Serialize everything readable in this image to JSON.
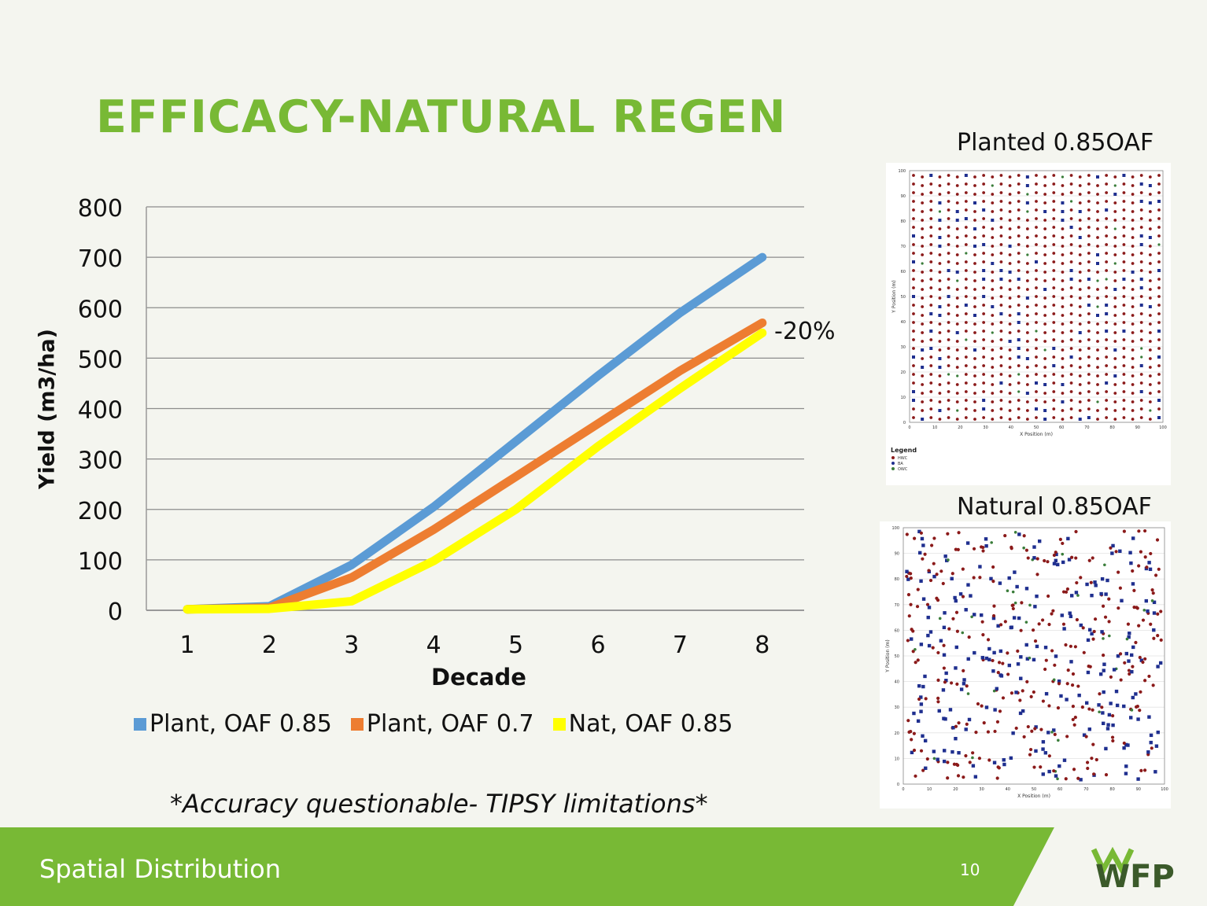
{
  "slide": {
    "title": "EFFICACY-NATURAL REGEN",
    "note": "*Accuracy questionable- TIPSY limitations*",
    "footer_text": "Spatial Distribution",
    "page_number": "10",
    "logo_text": "WFP"
  },
  "chart_data": {
    "type": "line",
    "xlabel": "Decade",
    "ylabel": "Yield (m3/ha)",
    "categories": [
      "1",
      "2",
      "3",
      "4",
      "5",
      "6",
      "7",
      "8"
    ],
    "ylim": [
      0,
      800
    ],
    "yticks": [
      "0",
      "100",
      "200",
      "300",
      "400",
      "500",
      "600",
      "700",
      "800"
    ],
    "grid": true,
    "legend_position": "bottom",
    "annotation": "-20%",
    "series": [
      {
        "name": "Plant, OAF 0.85",
        "color": "#5b9bd5",
        "values": [
          2,
          8,
          90,
          205,
          335,
          465,
          590,
          700
        ]
      },
      {
        "name": "Plant, OAF 0.7",
        "color": "#ed7d31",
        "values": [
          2,
          5,
          65,
          160,
          265,
          370,
          475,
          570
        ]
      },
      {
        "name": "Nat, OAF 0.85",
        "color": "#ffff00",
        "values": [
          2,
          3,
          18,
          98,
          200,
          325,
          440,
          550
        ]
      }
    ]
  },
  "plots": {
    "planted_label": "Planted 0.85OAF",
    "natural_label": "Natural 0.85OAF",
    "x_axis_title": "X Position (m)",
    "y_axis_title": "Y Position (m)",
    "ticks": [
      "0",
      "10",
      "20",
      "30",
      "40",
      "50",
      "60",
      "70",
      "80",
      "90",
      "100"
    ],
    "legend_title": "Legend",
    "legend_items": [
      "HWC",
      "BA",
      "OWC"
    ],
    "colors": {
      "hwc": "#8b1a1a",
      "ba": "#1f2f8f",
      "owc": "#3a7d3a"
    }
  },
  "theme": {
    "accent": "#78b935",
    "footer_dark": "#4e8f2e"
  }
}
